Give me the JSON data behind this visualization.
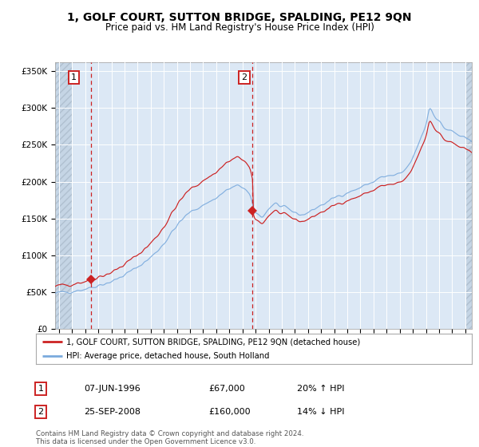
{
  "title": "1, GOLF COURT, SUTTON BRIDGE, SPALDING, PE12 9QN",
  "subtitle": "Price paid vs. HM Land Registry's House Price Index (HPI)",
  "red_label": "1, GOLF COURT, SUTTON BRIDGE, SPALDING, PE12 9QN (detached house)",
  "blue_label": "HPI: Average price, detached house, South Holland",
  "annotation1": {
    "num": "1",
    "date": "07-JUN-1996",
    "price": "£67,000",
    "hpi": "20% ↑ HPI"
  },
  "annotation2": {
    "num": "2",
    "date": "25-SEP-2008",
    "price": "£160,000",
    "hpi": "14% ↓ HPI"
  },
  "ylabel_ticks": [
    "£0",
    "£50K",
    "£100K",
    "£150K",
    "£200K",
    "£250K",
    "£300K",
    "£350K"
  ],
  "ytick_values": [
    0,
    50000,
    100000,
    150000,
    200000,
    250000,
    300000,
    350000
  ],
  "ylim": [
    0,
    362000
  ],
  "xlim_start": 1993.7,
  "xlim_end": 2025.5,
  "purchase1_x": 1996.44,
  "purchase1_y": 67000,
  "purchase2_x": 2008.73,
  "purchase2_y": 160000,
  "vline1_x": 1996.44,
  "vline2_x": 2008.73,
  "bg_color": "#dce8f5",
  "hatch_color": "#c5d5e5",
  "grid_color": "#ffffff",
  "red_color": "#cc2222",
  "blue_color": "#7aaadd",
  "footer": "Contains HM Land Registry data © Crown copyright and database right 2024.\nThis data is licensed under the Open Government Licence v3.0."
}
